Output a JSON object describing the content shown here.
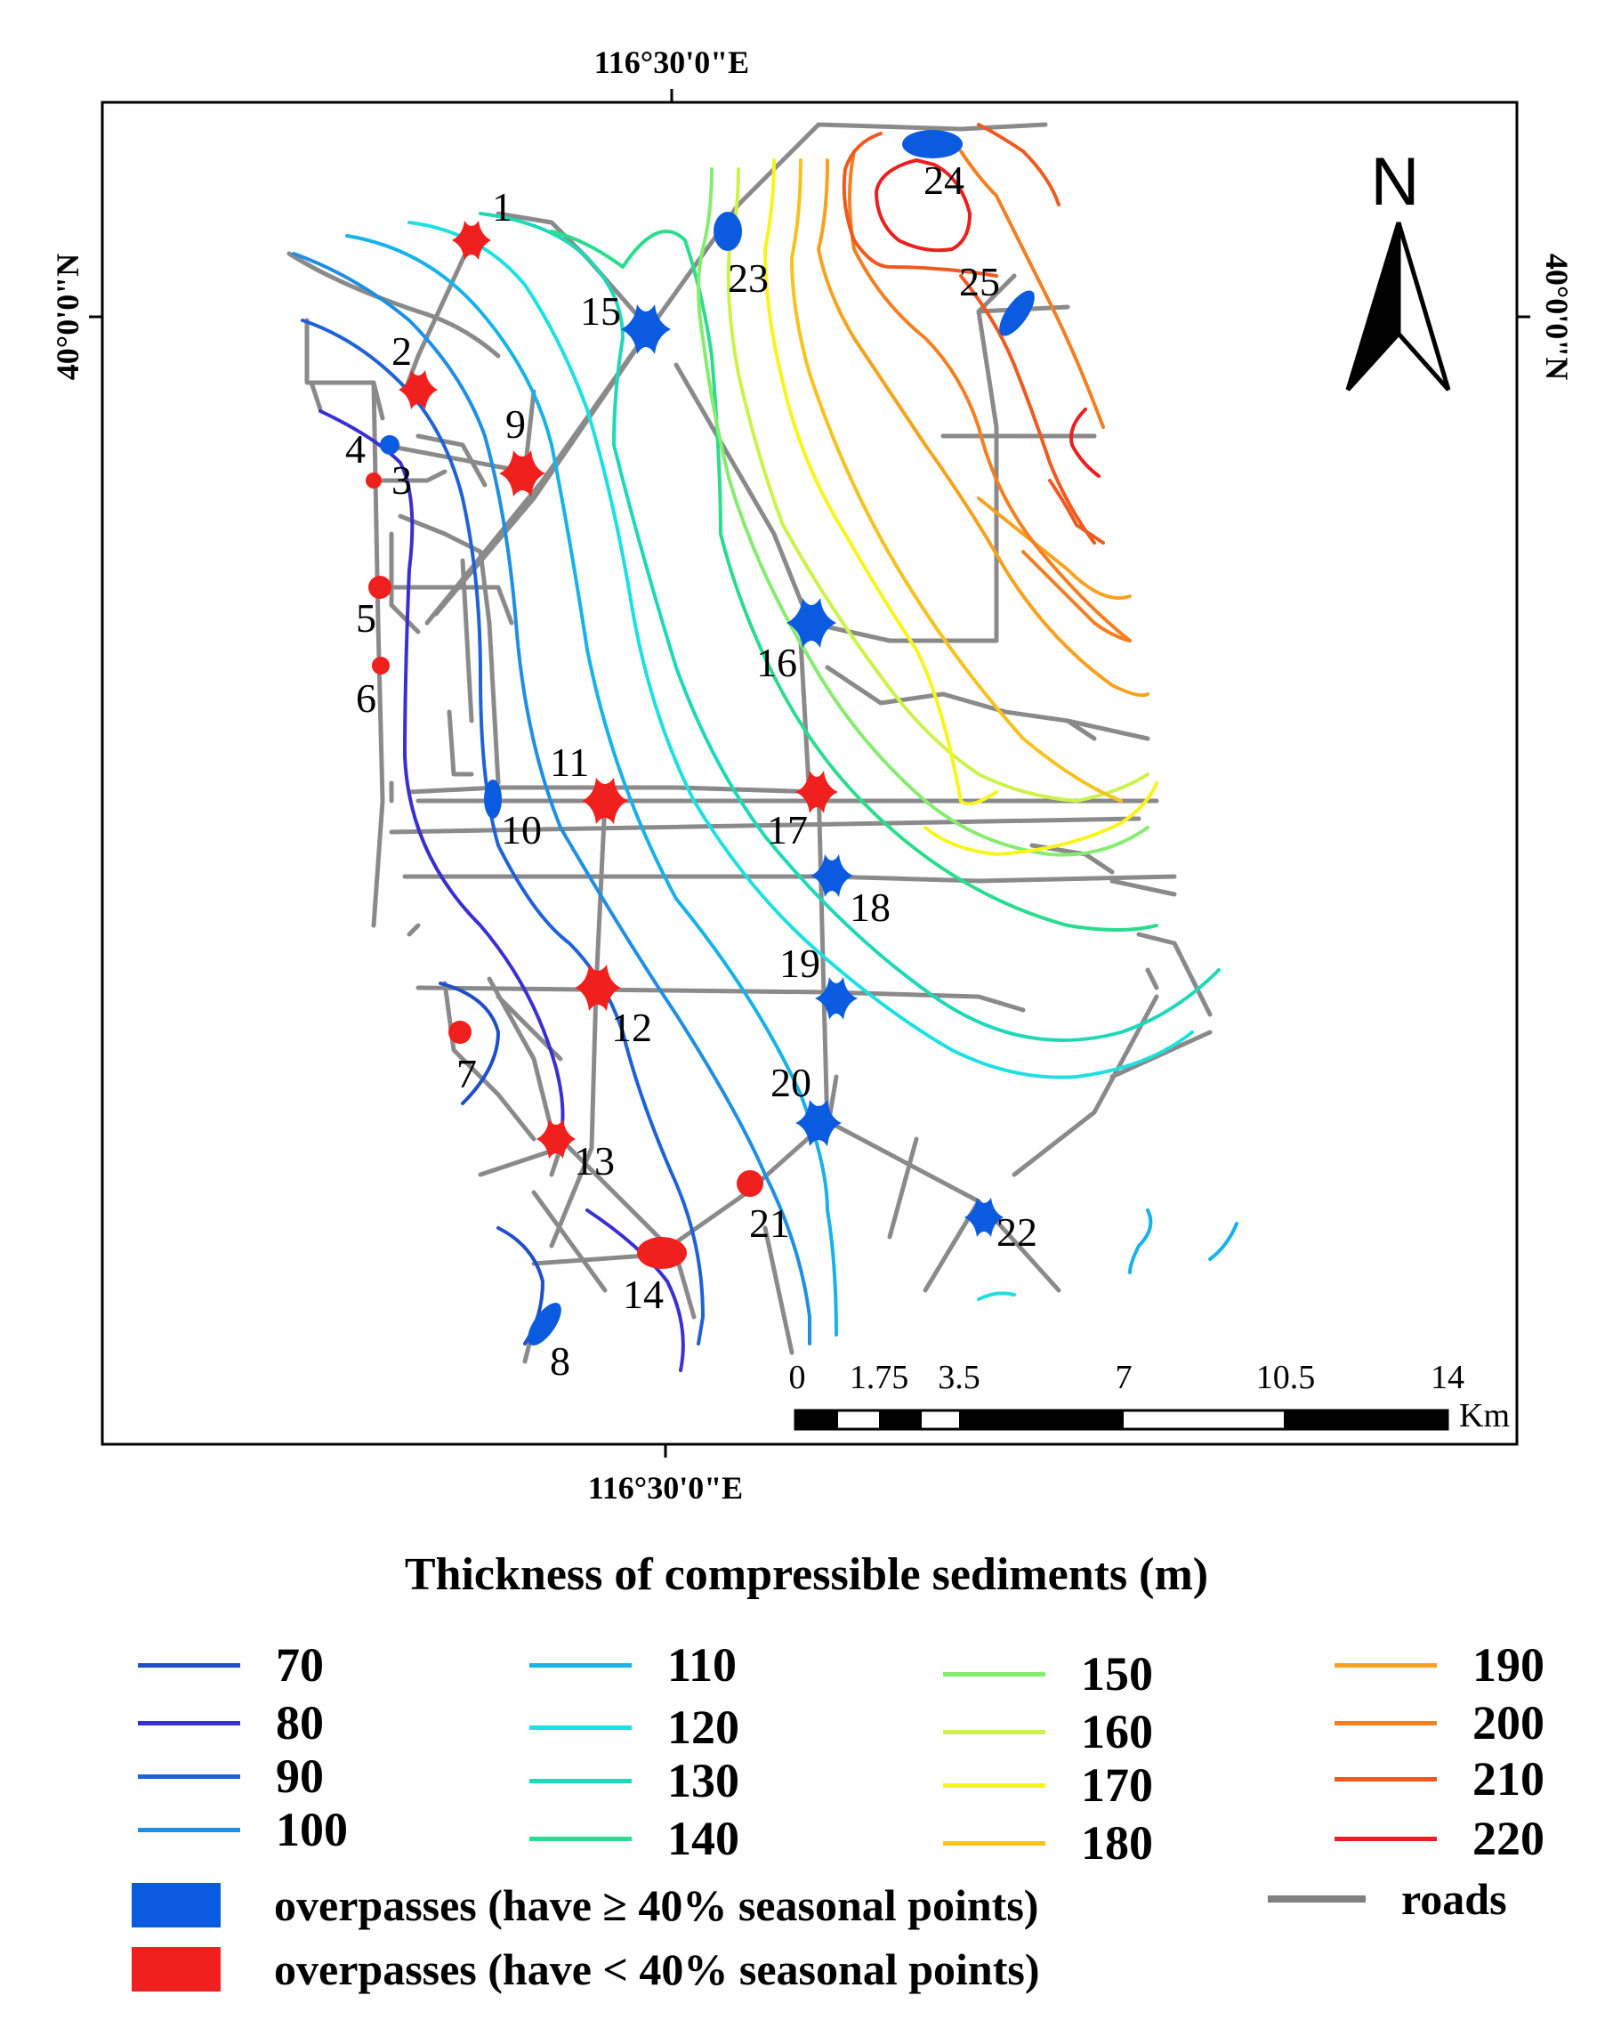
{
  "map": {
    "top_lon_label": "116°30'0\"E",
    "bottom_lon_label": "116°30'0\"E",
    "left_lat_label": "40°0'0\"N",
    "right_lat_label": "40°0'0\"N",
    "north_label": "N",
    "scale": {
      "ticks": [
        "0",
        "1.75",
        "3.5",
        "7",
        "10.5",
        "14"
      ],
      "unit": "Km"
    }
  },
  "overpasses": [
    {
      "id": "1",
      "class": "lt40"
    },
    {
      "id": "2",
      "class": "lt40"
    },
    {
      "id": "3",
      "class": "lt40"
    },
    {
      "id": "4",
      "class": "ge40"
    },
    {
      "id": "5",
      "class": "lt40"
    },
    {
      "id": "6",
      "class": "lt40"
    },
    {
      "id": "7",
      "class": "lt40"
    },
    {
      "id": "8",
      "class": "ge40"
    },
    {
      "id": "9",
      "class": "lt40"
    },
    {
      "id": "10",
      "class": "ge40"
    },
    {
      "id": "11",
      "class": "lt40"
    },
    {
      "id": "12",
      "class": "lt40"
    },
    {
      "id": "13",
      "class": "lt40"
    },
    {
      "id": "14",
      "class": "lt40"
    },
    {
      "id": "15",
      "class": "ge40"
    },
    {
      "id": "16",
      "class": "ge40"
    },
    {
      "id": "17",
      "class": "lt40"
    },
    {
      "id": "18",
      "class": "ge40"
    },
    {
      "id": "19",
      "class": "ge40"
    },
    {
      "id": "20",
      "class": "ge40"
    },
    {
      "id": "21",
      "class": "lt40"
    },
    {
      "id": "22",
      "class": "ge40"
    },
    {
      "id": "23",
      "class": "ge40"
    },
    {
      "id": "24",
      "class": "ge40"
    },
    {
      "id": "25",
      "class": "ge40"
    }
  ],
  "legend": {
    "title": "Thickness of compressible sediments (m)",
    "contours": [
      {
        "label": "70",
        "color": "#1f4fc8"
      },
      {
        "label": "80",
        "color": "#3a2fd0"
      },
      {
        "label": "90",
        "color": "#1f62d8"
      },
      {
        "label": "100",
        "color": "#1e8fe3"
      },
      {
        "label": "110",
        "color": "#17b2e8"
      },
      {
        "label": "120",
        "color": "#1ee0e0"
      },
      {
        "label": "130",
        "color": "#1fd8b8"
      },
      {
        "label": "140",
        "color": "#2cdc8e"
      },
      {
        "label": "150",
        "color": "#86ec6f"
      },
      {
        "label": "160",
        "color": "#cdf24a"
      },
      {
        "label": "170",
        "color": "#f7f51c"
      },
      {
        "label": "180",
        "color": "#f6c21d"
      },
      {
        "label": "190",
        "color": "#f7a21f"
      },
      {
        "label": "200",
        "color": "#f28022"
      },
      {
        "label": "210",
        "color": "#ee5a20"
      },
      {
        "label": "220",
        "color": "#ea2020"
      }
    ],
    "symbols": {
      "ge40_label": "overpasses (have ≥ 40% seasonal points)",
      "ge40_color": "#0a5be0",
      "lt40_label": "overpasses (have < 40% seasonal points)",
      "lt40_color": "#f0201e",
      "roads_label": "roads",
      "roads_color": "#808080"
    }
  }
}
